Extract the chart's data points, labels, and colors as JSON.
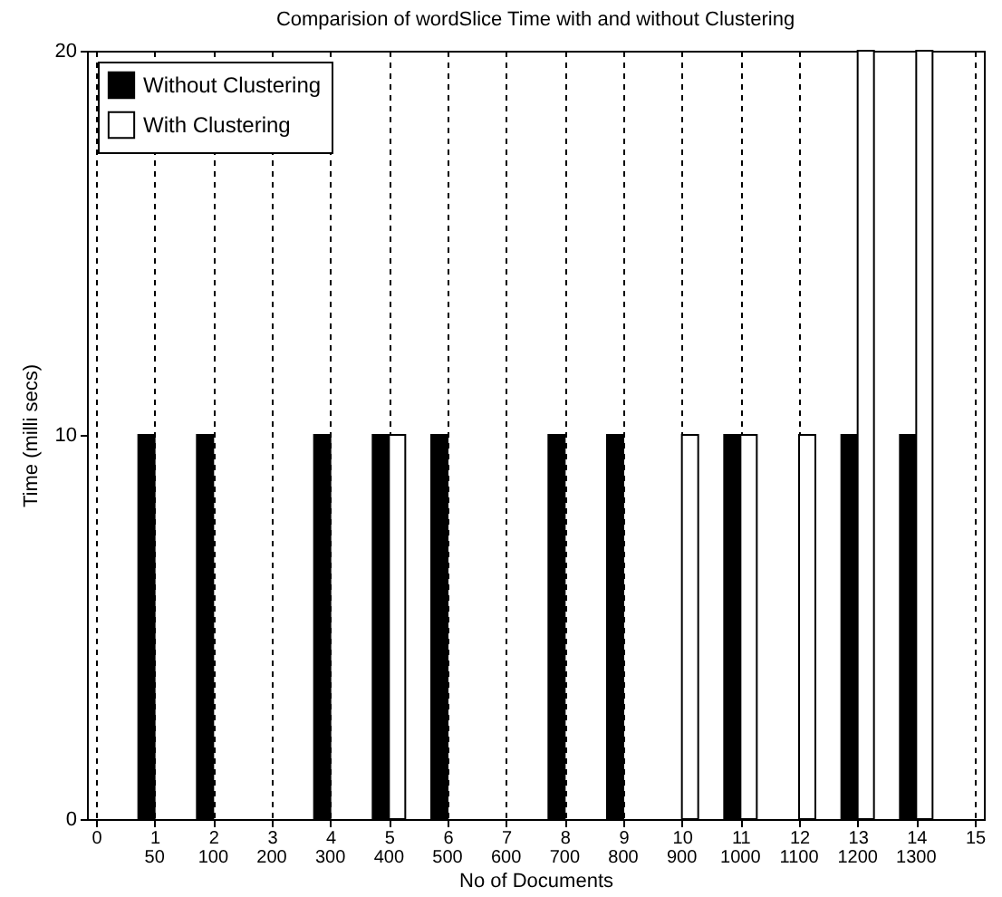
{
  "chart_data": {
    "type": "bar",
    "title": "Comparision of wordSlice Time with and without Clustering",
    "xlabel": "No of Documents",
    "ylabel": "Time (milli secs)",
    "x": [
      1,
      2,
      3,
      4,
      5,
      6,
      7,
      8,
      9,
      10,
      11,
      12,
      13,
      14
    ],
    "series": [
      {
        "name": "Without Clustering",
        "color": "#000000",
        "values": [
          10,
          10,
          null,
          10,
          10,
          10,
          null,
          10,
          10,
          null,
          10,
          null,
          10,
          10
        ]
      },
      {
        "name": "With Clustering",
        "color": "#ffffff",
        "values": [
          null,
          null,
          null,
          null,
          10,
          null,
          null,
          null,
          null,
          10,
          10,
          10,
          20,
          20
        ]
      }
    ],
    "xlim": [
      0,
      15
    ],
    "xticks": [
      0,
      1,
      2,
      3,
      4,
      5,
      6,
      7,
      8,
      9,
      10,
      11,
      12,
      13,
      14,
      15
    ],
    "ylim": [
      0,
      20
    ],
    "yticks": [
      0,
      10,
      20
    ],
    "annotations": [
      "50",
      "100",
      "200",
      "300",
      "400",
      "500",
      "600",
      "700",
      "800",
      "900",
      "1000",
      "1100",
      "1200",
      "1300"
    ],
    "grid": "x",
    "legend": "top left"
  }
}
